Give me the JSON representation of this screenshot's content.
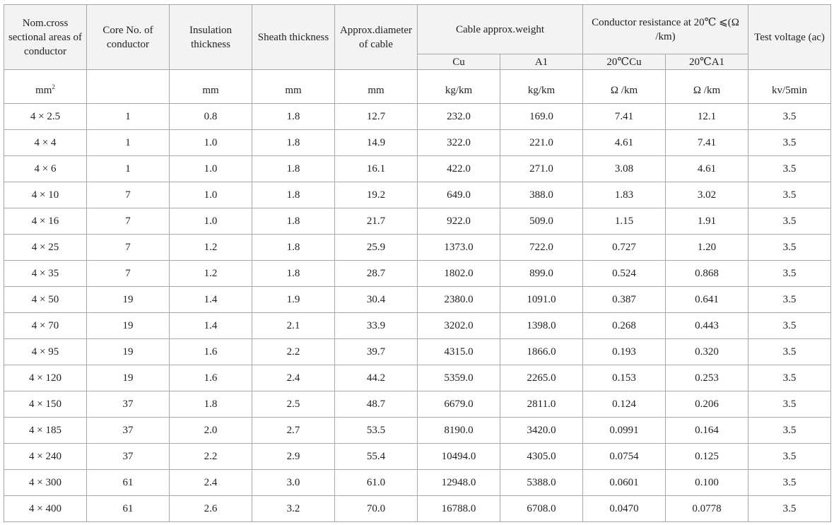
{
  "header": {
    "col_area": "Nom.cross sectional areas of conductor",
    "col_core": "Core No. of conductor",
    "col_insulation": "Insulation thickness",
    "col_sheath": "Sheath thickness",
    "col_diameter": "Approx.diameter of cable",
    "col_weight": "Cable approx.weight",
    "col_weight_cu": "Cu",
    "col_weight_al": "A1",
    "col_resistance": "Conductor resistance at 20℃ ⩽(Ω /km)",
    "col_resistance_cu": "20℃Cu",
    "col_resistance_al": "20℃A1",
    "col_voltage": "Test voltage (ac)"
  },
  "units": {
    "area": "mm",
    "area_sup": "2",
    "core": "",
    "insulation": "mm",
    "sheath": "mm",
    "diameter": "mm",
    "weight_cu": "kg/km",
    "weight_al": "kg/km",
    "res_cu": "Ω /km",
    "res_al": "Ω /km",
    "voltage": "kv/5min"
  },
  "rows": [
    {
      "area": "4 × 2.5",
      "core": "1",
      "insulation": "0.8",
      "sheath": "1.8",
      "diameter": "12.7",
      "weight_cu": "232.0",
      "weight_al": "169.0",
      "res_cu": "7.41",
      "res_al": "12.1",
      "voltage": "3.5"
    },
    {
      "area": "4 × 4",
      "core": "1",
      "insulation": "1.0",
      "sheath": "1.8",
      "diameter": "14.9",
      "weight_cu": "322.0",
      "weight_al": "221.0",
      "res_cu": "4.61",
      "res_al": "7.41",
      "voltage": "3.5"
    },
    {
      "area": "4 × 6",
      "core": "1",
      "insulation": "1.0",
      "sheath": "1.8",
      "diameter": "16.1",
      "weight_cu": "422.0",
      "weight_al": "271.0",
      "res_cu": "3.08",
      "res_al": "4.61",
      "voltage": "3.5"
    },
    {
      "area": "4 × 10",
      "core": "7",
      "insulation": "1.0",
      "sheath": "1.8",
      "diameter": "19.2",
      "weight_cu": "649.0",
      "weight_al": "388.0",
      "res_cu": "1.83",
      "res_al": "3.02",
      "voltage": "3.5"
    },
    {
      "area": "4 × 16",
      "core": "7",
      "insulation": "1.0",
      "sheath": "1.8",
      "diameter": "21.7",
      "weight_cu": "922.0",
      "weight_al": "509.0",
      "res_cu": "1.15",
      "res_al": "1.91",
      "voltage": "3.5"
    },
    {
      "area": "4 × 25",
      "core": "7",
      "insulation": "1.2",
      "sheath": "1.8",
      "diameter": "25.9",
      "weight_cu": "1373.0",
      "weight_al": "722.0",
      "res_cu": "0.727",
      "res_al": "1.20",
      "voltage": "3.5"
    },
    {
      "area": "4 × 35",
      "core": "7",
      "insulation": "1.2",
      "sheath": "1.8",
      "diameter": "28.7",
      "weight_cu": "1802.0",
      "weight_al": "899.0",
      "res_cu": "0.524",
      "res_al": "0.868",
      "voltage": "3.5"
    },
    {
      "area": "4 × 50",
      "core": "19",
      "insulation": "1.4",
      "sheath": "1.9",
      "diameter": "30.4",
      "weight_cu": "2380.0",
      "weight_al": "1091.0",
      "res_cu": "0.387",
      "res_al": "0.641",
      "voltage": "3.5"
    },
    {
      "area": "4 × 70",
      "core": "19",
      "insulation": "1.4",
      "sheath": "2.1",
      "diameter": "33.9",
      "weight_cu": "3202.0",
      "weight_al": "1398.0",
      "res_cu": "0.268",
      "res_al": "0.443",
      "voltage": "3.5"
    },
    {
      "area": "4 × 95",
      "core": "19",
      "insulation": "1.6",
      "sheath": "2.2",
      "diameter": "39.7",
      "weight_cu": "4315.0",
      "weight_al": "1866.0",
      "res_cu": "0.193",
      "res_al": "0.320",
      "voltage": "3.5"
    },
    {
      "area": "4 × 120",
      "core": "19",
      "insulation": "1.6",
      "sheath": "2.4",
      "diameter": "44.2",
      "weight_cu": "5359.0",
      "weight_al": "2265.0",
      "res_cu": "0.153",
      "res_al": "0.253",
      "voltage": "3.5"
    },
    {
      "area": "4 × 150",
      "core": "37",
      "insulation": "1.8",
      "sheath": "2.5",
      "diameter": "48.7",
      "weight_cu": "6679.0",
      "weight_al": "2811.0",
      "res_cu": "0.124",
      "res_al": "0.206",
      "voltage": "3.5"
    },
    {
      "area": "4 × 185",
      "core": "37",
      "insulation": "2.0",
      "sheath": "2.7",
      "diameter": "53.5",
      "weight_cu": "8190.0",
      "weight_al": "3420.0",
      "res_cu": "0.0991",
      "res_al": "0.164",
      "voltage": "3.5"
    },
    {
      "area": "4 × 240",
      "core": "37",
      "insulation": "2.2",
      "sheath": "2.9",
      "diameter": "55.4",
      "weight_cu": "10494.0",
      "weight_al": "4305.0",
      "res_cu": "0.0754",
      "res_al": "0.125",
      "voltage": "3.5"
    },
    {
      "area": "4 × 300",
      "core": "61",
      "insulation": "2.4",
      "sheath": "3.0",
      "diameter": "61.0",
      "weight_cu": "12948.0",
      "weight_al": "5388.0",
      "res_cu": "0.0601",
      "res_al": "0.100",
      "voltage": "3.5"
    },
    {
      "area": "4 × 400",
      "core": "61",
      "insulation": "2.6",
      "sheath": "3.2",
      "diameter": "70.0",
      "weight_cu": "16788.0",
      "weight_al": "6708.0",
      "res_cu": "0.0470",
      "res_al": "0.0778",
      "voltage": "3.5"
    }
  ]
}
